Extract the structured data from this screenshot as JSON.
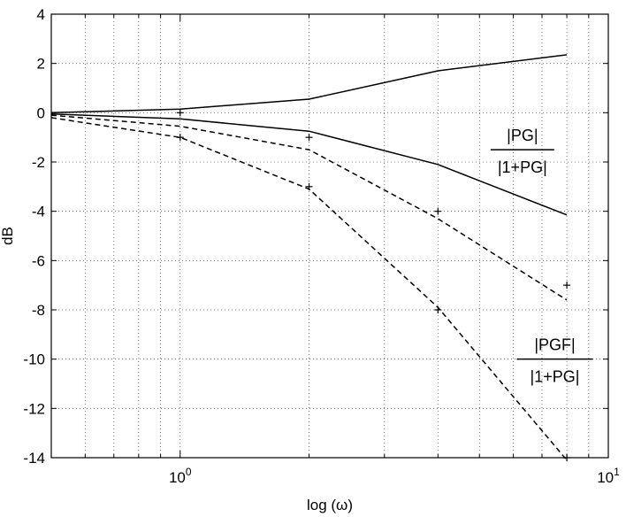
{
  "chart_data": {
    "type": "line",
    "xlabel": "log (ω)",
    "ylabel": "dB",
    "xscale": "log",
    "xlim": [
      0.5,
      10
    ],
    "ylim": [
      -14,
      4
    ],
    "grid": true,
    "x_ticks": [
      {
        "value": 1,
        "base": "10",
        "exp": "0"
      },
      {
        "value": 10,
        "base": "10",
        "exp": "1"
      }
    ],
    "y_ticks": [
      4,
      2,
      0,
      -2,
      -4,
      -6,
      -8,
      -10,
      -12,
      -14
    ],
    "series": [
      {
        "style": "solid",
        "x": [
          0.5,
          1,
          2,
          4,
          8
        ],
        "y": [
          0.0,
          0.15,
          0.55,
          1.7,
          2.35
        ]
      },
      {
        "style": "solid",
        "x": [
          0.5,
          1,
          2,
          4,
          8
        ],
        "y": [
          -0.05,
          -0.25,
          -0.75,
          -2.1,
          -4.15
        ]
      },
      {
        "style": "dashed",
        "x": [
          0.5,
          1,
          2,
          4,
          8
        ],
        "y": [
          -0.1,
          -0.55,
          -1.5,
          -4.3,
          -7.6
        ]
      },
      {
        "style": "dashed",
        "x": [
          0.5,
          1,
          2,
          4,
          8
        ],
        "y": [
          -0.2,
          -1.0,
          -3.1,
          -7.9,
          -14.1
        ]
      }
    ],
    "markers": [
      {
        "x": 1,
        "y": 0.0
      },
      {
        "x": 2,
        "y": -1.0
      },
      {
        "x": 4,
        "y": -4.0
      },
      {
        "x": 8,
        "y": -7.0
      },
      {
        "x": 1,
        "y": -1.0
      },
      {
        "x": 2,
        "y": -3.0
      },
      {
        "x": 4,
        "y": -8.0
      },
      {
        "x": 8,
        "y": -14.0
      }
    ],
    "annotations": {
      "pg_ratio": {
        "numerator": "|PG|",
        "denominator": "|1+PG|",
        "x": 6.3,
        "y": -1.5
      },
      "pgf_ratio": {
        "numerator": "|PGF|",
        "denominator": "|1+PG|",
        "x": 7.5,
        "y": -10.0
      }
    }
  }
}
